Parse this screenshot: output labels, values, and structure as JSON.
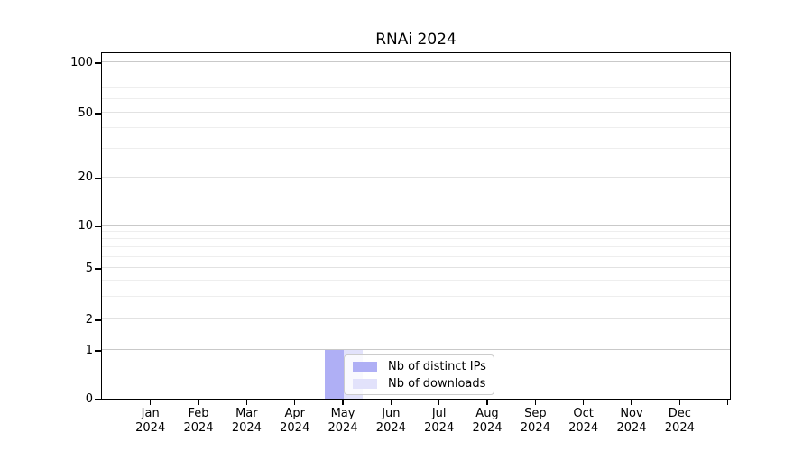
{
  "chart_data": {
    "type": "bar",
    "title": "RNAi 2024",
    "x_axis": {
      "tick_labels": [
        {
          "line1": "Jan",
          "line2": "2024"
        },
        {
          "line1": "Feb",
          "line2": "2024"
        },
        {
          "line1": "Mar",
          "line2": "2024"
        },
        {
          "line1": "Apr",
          "line2": "2024"
        },
        {
          "line1": "May",
          "line2": "2024"
        },
        {
          "line1": "Jun",
          "line2": "2024"
        },
        {
          "line1": "Jul",
          "line2": "2024"
        },
        {
          "line1": "Aug",
          "line2": "2024"
        },
        {
          "line1": "Sep",
          "line2": "2024"
        },
        {
          "line1": "Oct",
          "line2": "2024"
        },
        {
          "line1": "Nov",
          "line2": "2024"
        },
        {
          "line1": "Dec",
          "line2": "2024"
        }
      ],
      "extra_unlabeled_tick": true
    },
    "y_axis": {
      "scale": "log-like with 0 baseline",
      "ylim": [
        0,
        115
      ],
      "ticks": [
        {
          "label": "0",
          "value": 0,
          "pos": 0.0,
          "major": false
        },
        {
          "label": "1",
          "value": 1,
          "pos": 0.1403,
          "major": true
        },
        {
          "label": "2",
          "value": 2,
          "pos": 0.2286,
          "major": false
        },
        {
          "label": "5",
          "value": 5,
          "pos": 0.3766,
          "major": false
        },
        {
          "label": "10",
          "value": 10,
          "pos": 0.4987,
          "major": true
        },
        {
          "label": "20",
          "value": 20,
          "pos": 0.6377,
          "major": false
        },
        {
          "label": "50",
          "value": 50,
          "pos": 0.8234,
          "major": false
        },
        {
          "label": "100",
          "value": 100,
          "pos": 0.9688,
          "major": true
        }
      ],
      "minor_gridlines": [
        {
          "value": 3,
          "pos": 0.294
        },
        {
          "value": 4,
          "pos": 0.3405
        },
        {
          "value": 6,
          "pos": 0.4088
        },
        {
          "value": 7,
          "pos": 0.4358
        },
        {
          "value": 8,
          "pos": 0.4595
        },
        {
          "value": 9,
          "pos": 0.4803
        },
        {
          "value": 30,
          "pos": 0.7197
        },
        {
          "value": 40,
          "pos": 0.7782
        },
        {
          "value": 60,
          "pos": 0.8616
        },
        {
          "value": 70,
          "pos": 0.894
        },
        {
          "value": 80,
          "pos": 0.9221
        },
        {
          "value": 90,
          "pos": 0.9468
        }
      ]
    },
    "series": [
      {
        "name": "Nb of distinct IPs",
        "color": "#afaff5",
        "values": [
          0,
          0,
          0,
          0,
          1,
          0,
          0,
          0,
          0,
          0,
          0,
          0
        ]
      },
      {
        "name": "Nb of downloads",
        "color": "#e2e2fb",
        "values": [
          0,
          0,
          0,
          0,
          1,
          0,
          0,
          0,
          0,
          0,
          0,
          0
        ]
      }
    ],
    "legend": {
      "position": "lower-center-inside",
      "entries": [
        "Nb of distinct IPs",
        "Nb of downloads"
      ]
    },
    "grid": true,
    "colors": {
      "grid_major": "#c9c9c9",
      "grid_minor_labeled": "#e2e2e2",
      "grid_minor": "#eeeeee",
      "legend_border": "#cccccc",
      "axis": "#000000"
    }
  }
}
